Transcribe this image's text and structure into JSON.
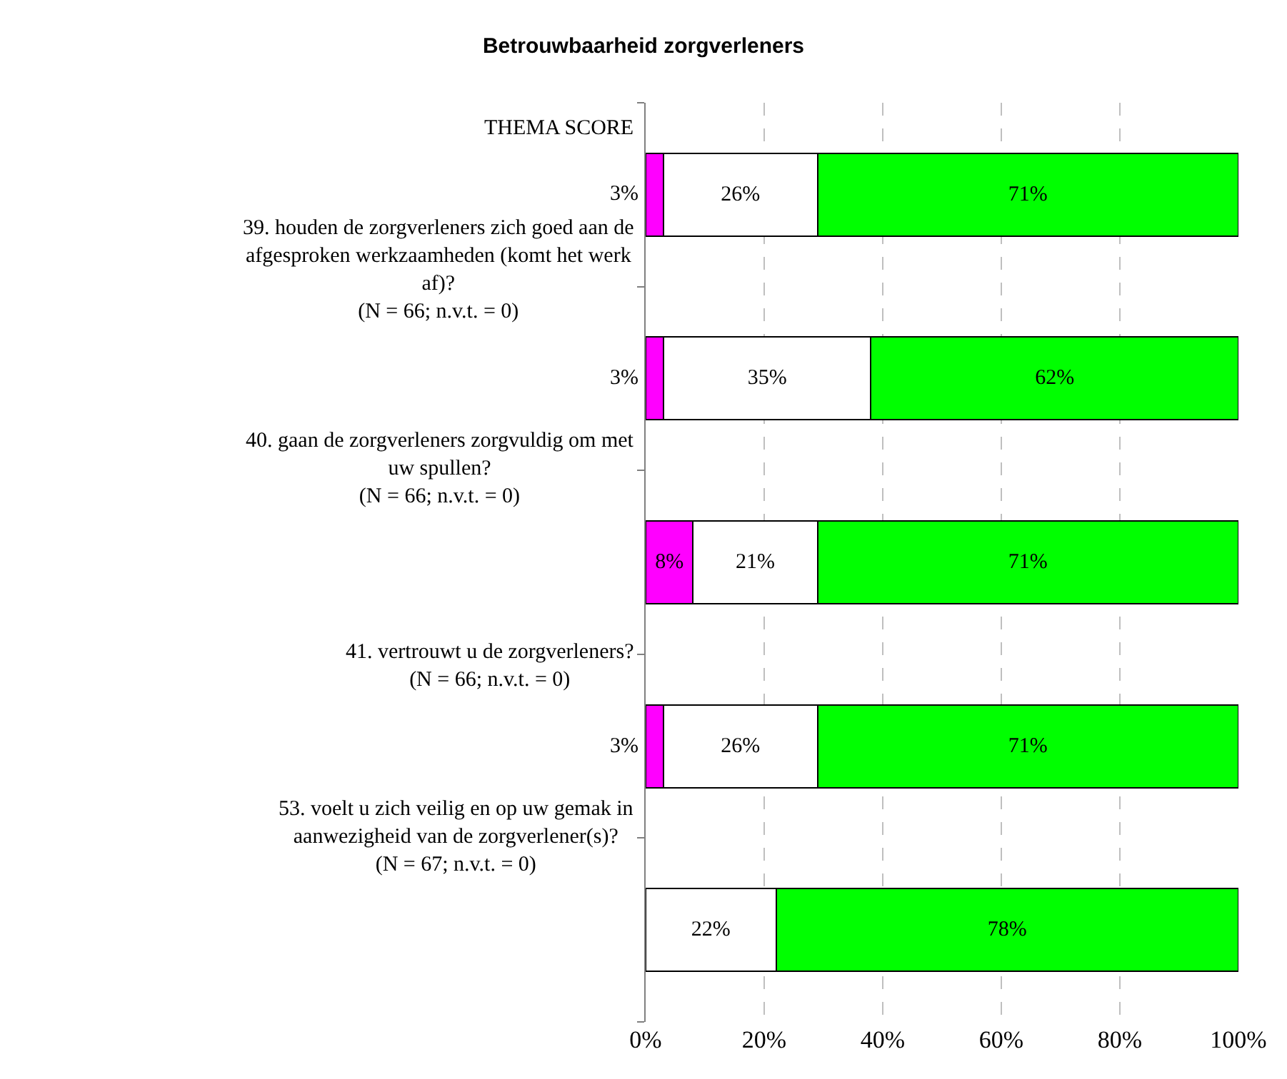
{
  "chart_data": {
    "type": "bar",
    "title": "Betrouwbaarheid zorgverleners",
    "orientation": "horizontal",
    "stacked": true,
    "categories": [
      "THEMA SCORE",
      "39. houden de zorgverleners zich goed aan de\nafgesproken werkzaamheden (komt het werk\naf)?\n(N = 66; n.v.t. = 0)",
      "40. gaan de zorgverleners zorgvuldig om met\nuw spullen?\n(N = 66; n.v.t. = 0)",
      "41. vertrouwt u de zorgverleners?\n(N = 66; n.v.t. = 0)",
      "53. voelt u zich veilig en op uw gemak in\naanwezigheid van de zorgverlener(s)?\n(N = 67; n.v.t. = 0)"
    ],
    "series": [
      {
        "color": "#ff00ff",
        "values": [
          3,
          3,
          8,
          3,
          null
        ],
        "value_labels": [
          "3%",
          "3%",
          "8%",
          "3%",
          null
        ]
      },
      {
        "color": "#ffffff",
        "values": [
          26,
          35,
          21,
          26,
          22
        ],
        "value_labels": [
          "26%",
          "35%",
          "21%",
          "26%",
          "22%"
        ]
      },
      {
        "color": "#00ff00",
        "values": [
          71,
          62,
          71,
          71,
          78
        ],
        "value_labels": [
          "71%",
          "62%",
          "71%",
          "71%",
          "78%"
        ]
      }
    ],
    "xlim": [
      0,
      100
    ],
    "xticks": [
      {
        "value": 0,
        "label": "0%"
      },
      {
        "value": 20,
        "label": "20%"
      },
      {
        "value": 40,
        "label": "40%"
      },
      {
        "value": 60,
        "label": "60%"
      },
      {
        "value": 80,
        "label": "80%"
      },
      {
        "value": 100,
        "label": "100%"
      }
    ],
    "grid": "x",
    "legend": false
  }
}
